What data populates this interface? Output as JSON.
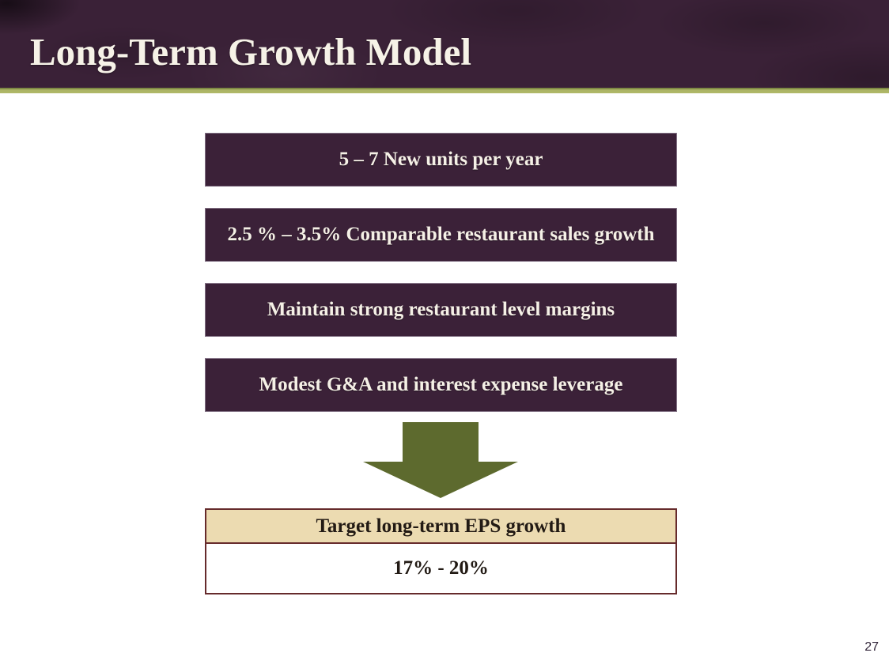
{
  "header": {
    "title": "Long-Term Growth Model"
  },
  "growth_drivers": [
    {
      "label": "5 – 7 New units per year"
    },
    {
      "label": "2.5 % – 3.5% Comparable restaurant sales growth"
    },
    {
      "label": "Maintain strong restaurant level margins"
    },
    {
      "label": "Modest G&A and interest expense leverage"
    }
  ],
  "result_box": {
    "header": "Target long-term EPS growth",
    "value": "17% - 20%"
  },
  "footer": {
    "page_number": "27"
  },
  "icons": {
    "down_arrow": "block-down-arrow-icon"
  },
  "colors": {
    "header_background": "#3a2137",
    "accent_bar": "#a9b263",
    "accent_bar_top_edge": "#7f8a45",
    "driver_box_background": "#3b2138",
    "driver_box_text": "#f5f0e6",
    "arrow_fill": "#5d6a2e",
    "result_border": "#662b2c",
    "result_header_background": "#ecdbb1",
    "result_text": "#221a14",
    "slide_background": "#ffffff",
    "title_text": "#f6f2e7"
  }
}
